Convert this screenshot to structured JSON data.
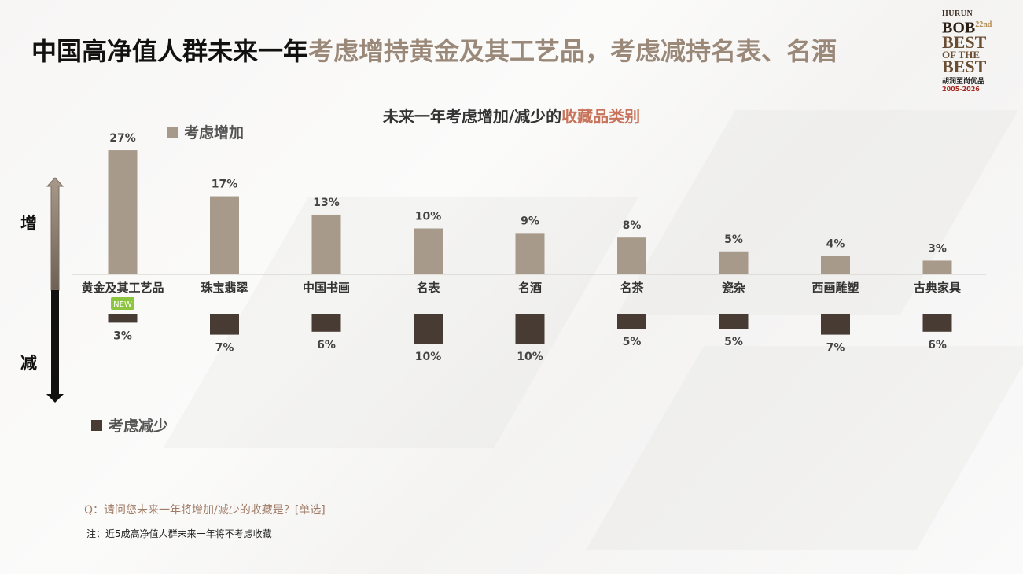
{
  "title": {
    "part1": "中国高净值人群未来一年",
    "part2": "考虑增持黄金及其工艺品，考虑",
    "part3": "减持名表、名酒"
  },
  "logo": {
    "line1": "HURUN",
    "line2": "BOB",
    "line2_sup": "22nd",
    "line3": "BEST",
    "line4": "OF THE",
    "line5": "BEST",
    "line6": "胡润至尚优品",
    "line7": "2005-2026"
  },
  "subtitle": {
    "main": "未来一年考虑增加/减少的",
    "accent": "收藏品类别"
  },
  "side_labels": {
    "increase": "增",
    "decrease": "减"
  },
  "footnotes": {
    "question": "Q：请问您未来一年将增加/减少的收藏是？[单选]",
    "note": "注：近5成高净值人群未来一年将不考虑收藏"
  },
  "new_badge": "NEW",
  "colors": {
    "increase": "#a89a8a",
    "decrease": "#483b33",
    "title_accent": "#9a8878",
    "subtitle_accent": "#c8735a",
    "badge": "#8cc63f"
  },
  "chart_data": {
    "type": "bar",
    "title": "未来一年考虑增加/减少的收藏品类别",
    "categories": [
      "黄金及其工艺品",
      "珠宝翡翠",
      "中国书画",
      "名表",
      "名酒",
      "名茶",
      "瓷杂",
      "西画雕塑",
      "古典家具"
    ],
    "series": [
      {
        "name": "考虑增加",
        "values": [
          27,
          17,
          13,
          10,
          9,
          8,
          5,
          4,
          3
        ],
        "labels": [
          "27%",
          "17%",
          "13%",
          "10%",
          "9%",
          "8%",
          "5%",
          "4%",
          "3%"
        ]
      },
      {
        "name": "考虑减少",
        "values": [
          3,
          7,
          6,
          10,
          10,
          5,
          5,
          7,
          6
        ],
        "labels": [
          "3%",
          "7%",
          "6%",
          "10%",
          "10%",
          "5%",
          "5%",
          "7%",
          "6%"
        ]
      }
    ],
    "unit": "%",
    "legend": "top-left (increase), bottom-left (decrease)"
  }
}
